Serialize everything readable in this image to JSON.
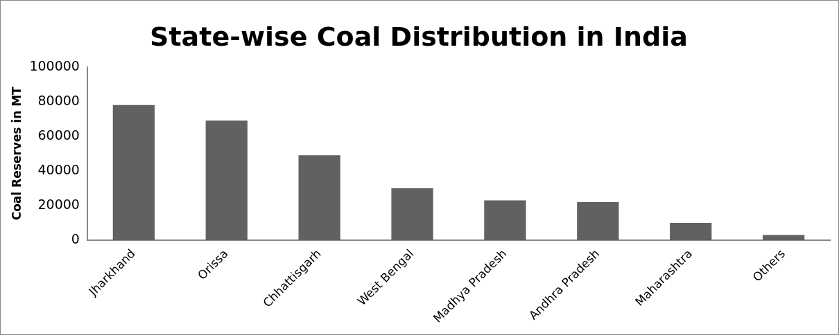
{
  "chart_data": {
    "type": "bar",
    "title": "State-wise Coal Distribution in India",
    "ylabel": "Coal Reserves in MT",
    "categories": [
      "Jharkhand",
      "Orissa",
      "Chhattisgarh",
      "West Bengal",
      "Madhya Pradesh",
      "Andhra Pradesh",
      "Maharashtra",
      "Others"
    ],
    "values": [
      78000,
      69000,
      49000,
      30000,
      23000,
      22000,
      10000,
      3000
    ],
    "color": "#616161",
    "ylim": [
      0,
      100000
    ],
    "yticks": [
      0,
      20000,
      40000,
      60000,
      80000,
      100000
    ],
    "grid": false,
    "legend": false
  }
}
